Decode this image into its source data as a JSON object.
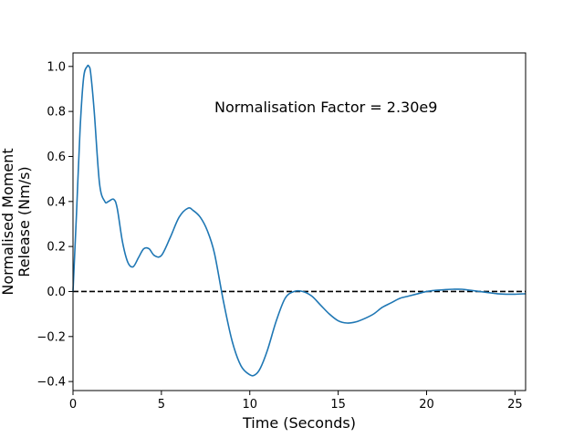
{
  "chart_data": {
    "type": "line",
    "title": "",
    "xlabel": "Time (Seconds)",
    "ylabel_lines": [
      "Normalised Moment",
      "Release (Nm/s)"
    ],
    "annotation": "Normalisation Factor = 2.30e9",
    "xlim": [
      0,
      25.6
    ],
    "ylim": [
      -0.44,
      1.06
    ],
    "x_ticks": [
      0,
      5,
      10,
      15,
      20,
      25
    ],
    "x_tick_labels": [
      "0",
      "5",
      "10",
      "15",
      "20",
      "25"
    ],
    "y_ticks": [
      -0.4,
      -0.2,
      0.0,
      0.2,
      0.4,
      0.6,
      0.8,
      1.0
    ],
    "y_tick_labels": [
      "−0.4",
      "−0.2",
      "0.0",
      "0.2",
      "0.4",
      "0.6",
      "0.8",
      "1.0"
    ],
    "grid": false,
    "reference_line": {
      "y": 0.0,
      "style": "dashed",
      "color": "#000000"
    },
    "series": [
      {
        "color": "#1f77b4",
        "x": [
          0,
          0.2,
          0.4,
          0.6,
          0.8,
          0.9,
          1.0,
          1.2,
          1.5,
          1.8,
          2.0,
          2.3,
          2.5,
          2.8,
          3.1,
          3.4,
          3.7,
          4.0,
          4.3,
          4.6,
          5.0,
          5.5,
          6.0,
          6.5,
          6.8,
          7.2,
          7.6,
          8.0,
          8.5,
          9.0,
          9.5,
          10.0,
          10.3,
          10.6,
          11.0,
          11.5,
          12.0,
          12.5,
          13.0,
          13.5,
          14.0,
          14.5,
          15.0,
          15.5,
          16.0,
          16.5,
          17.0,
          17.5,
          18.0,
          18.5,
          19.0,
          19.5,
          20.0,
          20.5,
          21.0,
          21.5,
          22.0,
          22.5,
          23.0,
          23.5,
          24.0,
          24.5,
          25.0,
          25.6
        ],
        "y": [
          0.0,
          0.35,
          0.72,
          0.95,
          1.0,
          1.0,
          0.97,
          0.8,
          0.48,
          0.4,
          0.4,
          0.41,
          0.37,
          0.22,
          0.13,
          0.11,
          0.15,
          0.19,
          0.19,
          0.16,
          0.16,
          0.24,
          0.33,
          0.37,
          0.36,
          0.33,
          0.27,
          0.17,
          -0.04,
          -0.22,
          -0.33,
          -0.37,
          -0.37,
          -0.34,
          -0.26,
          -0.13,
          -0.03,
          0.0,
          0.0,
          -0.02,
          -0.06,
          -0.1,
          -0.13,
          -0.14,
          -0.135,
          -0.12,
          -0.1,
          -0.07,
          -0.05,
          -0.03,
          -0.02,
          -0.01,
          0.0,
          0.005,
          0.008,
          0.01,
          0.01,
          0.005,
          0.0,
          -0.005,
          -0.01,
          -0.012,
          -0.012,
          -0.01
        ]
      }
    ]
  }
}
